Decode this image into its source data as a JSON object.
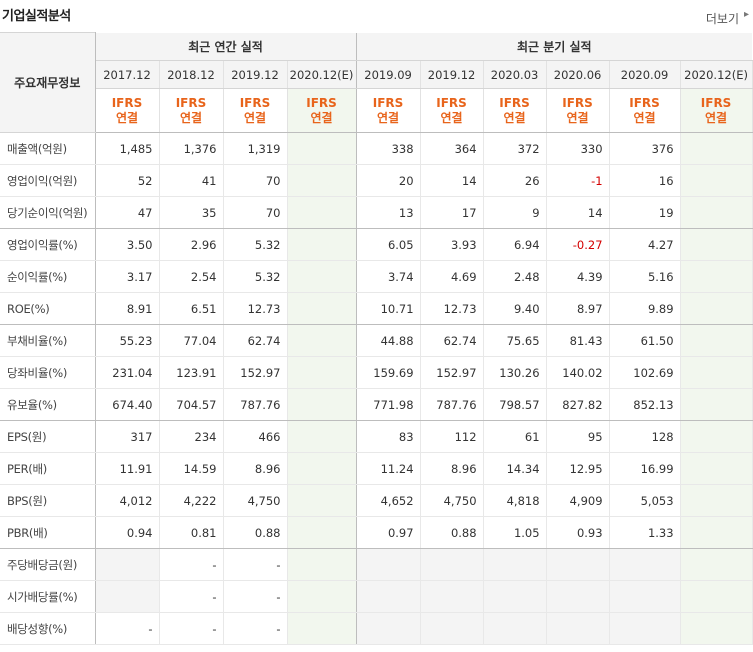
{
  "header": {
    "title": "기업실적분석",
    "more": "더보기",
    "more_arrow": "▸"
  },
  "table": {
    "label_header": "주요재무정보",
    "annual_group": "최근 연간 실적",
    "quarter_group": "최근 분기 실적",
    "annual_periods": [
      "2017.12",
      "2018.12",
      "2019.12",
      "2020.12(E)"
    ],
    "quarter_periods": [
      "2019.09",
      "2019.12",
      "2020.03",
      "2020.06",
      "2020.09",
      "2020.12(E)"
    ],
    "ifrs_top": "IFRS",
    "ifrs_bottom": "연결",
    "rows": [
      {
        "label": "매출액(억원)",
        "annual": [
          "1,485",
          "1,376",
          "1,319",
          ""
        ],
        "quarter": [
          "338",
          "364",
          "372",
          "330",
          "376",
          ""
        ]
      },
      {
        "label": "영업이익(억원)",
        "annual": [
          "52",
          "41",
          "70",
          ""
        ],
        "quarter": [
          "20",
          "14",
          "26",
          "-1",
          "16",
          ""
        ]
      },
      {
        "label": "당기순이익(억원)",
        "annual": [
          "47",
          "35",
          "70",
          ""
        ],
        "quarter": [
          "13",
          "17",
          "9",
          "14",
          "19",
          ""
        ]
      },
      {
        "label": "영업이익률(%)",
        "annual": [
          "3.50",
          "2.96",
          "5.32",
          ""
        ],
        "quarter": [
          "6.05",
          "3.93",
          "6.94",
          "-0.27",
          "4.27",
          ""
        ]
      },
      {
        "label": "순이익률(%)",
        "annual": [
          "3.17",
          "2.54",
          "5.32",
          ""
        ],
        "quarter": [
          "3.74",
          "4.69",
          "2.48",
          "4.39",
          "5.16",
          ""
        ]
      },
      {
        "label": "ROE(%)",
        "annual": [
          "8.91",
          "6.51",
          "12.73",
          ""
        ],
        "quarter": [
          "10.71",
          "12.73",
          "9.40",
          "8.97",
          "9.89",
          ""
        ]
      },
      {
        "label": "부채비율(%)",
        "annual": [
          "55.23",
          "77.04",
          "62.74",
          ""
        ],
        "quarter": [
          "44.88",
          "62.74",
          "75.65",
          "81.43",
          "61.50",
          ""
        ]
      },
      {
        "label": "당좌비율(%)",
        "annual": [
          "231.04",
          "123.91",
          "152.97",
          ""
        ],
        "quarter": [
          "159.69",
          "152.97",
          "130.26",
          "140.02",
          "102.69",
          ""
        ]
      },
      {
        "label": "유보율(%)",
        "annual": [
          "674.40",
          "704.57",
          "787.76",
          ""
        ],
        "quarter": [
          "771.98",
          "787.76",
          "798.57",
          "827.82",
          "852.13",
          ""
        ]
      },
      {
        "label": "EPS(원)",
        "annual": [
          "317",
          "234",
          "466",
          ""
        ],
        "quarter": [
          "83",
          "112",
          "61",
          "95",
          "128",
          ""
        ]
      },
      {
        "label": "PER(배)",
        "annual": [
          "11.91",
          "14.59",
          "8.96",
          ""
        ],
        "quarter": [
          "11.24",
          "8.96",
          "14.34",
          "12.95",
          "16.99",
          ""
        ]
      },
      {
        "label": "BPS(원)",
        "annual": [
          "4,012",
          "4,222",
          "4,750",
          ""
        ],
        "quarter": [
          "4,652",
          "4,750",
          "4,818",
          "4,909",
          "5,053",
          ""
        ]
      },
      {
        "label": "PBR(배)",
        "annual": [
          "0.94",
          "0.81",
          "0.88",
          ""
        ],
        "quarter": [
          "0.97",
          "0.88",
          "1.05",
          "0.93",
          "1.33",
          ""
        ]
      },
      {
        "label": "주당배당금(원)",
        "annual": [
          "",
          "-",
          "-",
          ""
        ],
        "quarter": [
          "",
          "",
          "",
          "",
          "",
          ""
        ]
      },
      {
        "label": "시가배당률(%)",
        "annual": [
          "",
          "-",
          "-",
          ""
        ],
        "quarter": [
          "",
          "",
          "",
          "",
          "",
          ""
        ]
      },
      {
        "label": "배당성향(%)",
        "annual": [
          "-",
          "-",
          "-",
          ""
        ],
        "quarter": [
          "",
          "",
          "",
          "",
          "",
          ""
        ]
      }
    ]
  },
  "colors": {
    "ifrs_text": "#e8641b",
    "negative": "#d40000",
    "estimate_bg": "#f2f7ee",
    "header_bg": "#f4f4f4"
  }
}
